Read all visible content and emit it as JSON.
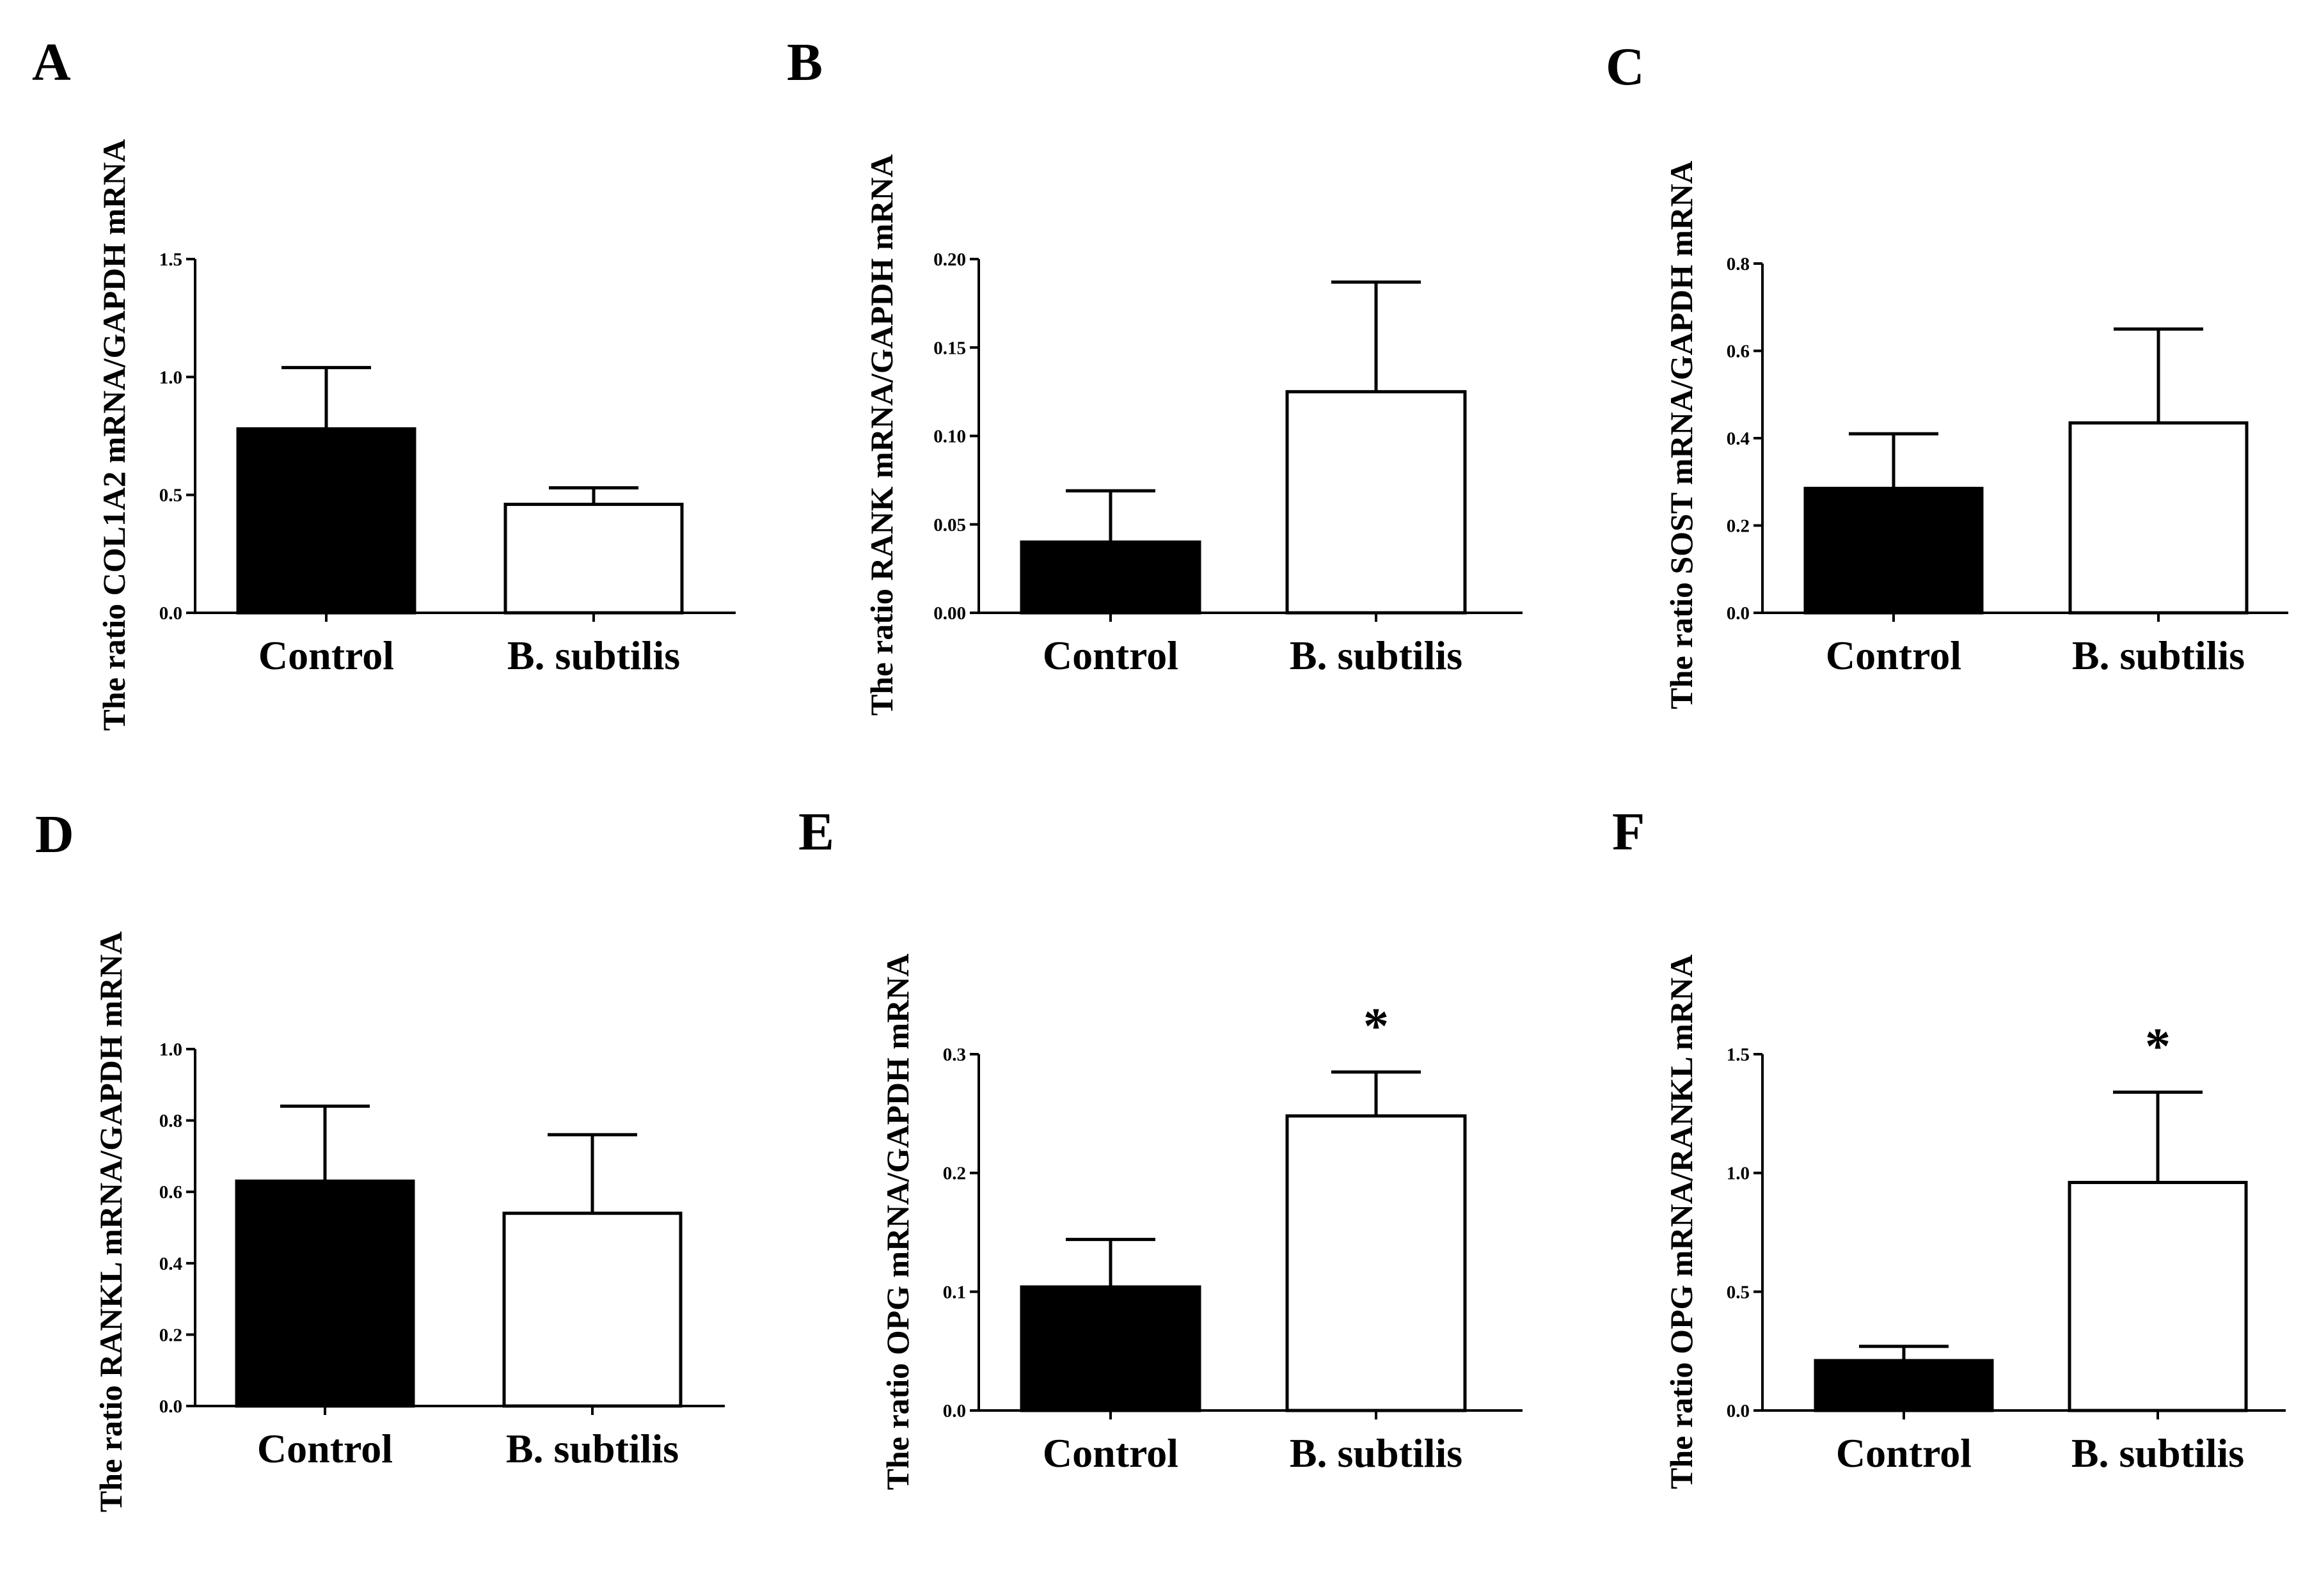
{
  "figure": {
    "categories": [
      "Control",
      "B. subtilis"
    ],
    "colors": {
      "control": "#000000",
      "treatment": "#ffffff",
      "stroke": "#000000"
    }
  },
  "chart_data": [
    {
      "type": "bar",
      "panel": "A",
      "ylabel": "The ratio COL1A2 mRNA/GAPDH mRNA",
      "categories": [
        "Control",
        "B. subtilis"
      ],
      "values": [
        0.78,
        0.46
      ],
      "errors": [
        0.26,
        0.07
      ],
      "ylim": [
        0,
        1.5
      ],
      "yticks": [
        0,
        0.5,
        1.0,
        1.5
      ],
      "ytick_labels": [
        "0.0",
        "0.5",
        "1.0",
        "1.5"
      ],
      "significance": [
        "",
        ""
      ]
    },
    {
      "type": "bar",
      "panel": "B",
      "ylabel": "The ratio RANK mRNA/GAPDH mRNA",
      "categories": [
        "Control",
        "B. subtilis"
      ],
      "values": [
        0.04,
        0.125
      ],
      "errors": [
        0.029,
        0.062
      ],
      "ylim": [
        0,
        0.2
      ],
      "yticks": [
        0,
        0.05,
        0.1,
        0.15,
        0.2
      ],
      "ytick_labels": [
        "0.00",
        "0.05",
        "0.10",
        "0.15",
        "0.20"
      ],
      "significance": [
        "",
        ""
      ]
    },
    {
      "type": "bar",
      "panel": "C",
      "ylabel": "The ratio SOST mRNA/GAPDH mRNA",
      "categories": [
        "Control",
        "B. subtilis"
      ],
      "values": [
        0.285,
        0.435
      ],
      "errors": [
        0.125,
        0.215
      ],
      "ylim": [
        0,
        0.8
      ],
      "yticks": [
        0,
        0.2,
        0.4,
        0.6,
        0.8
      ],
      "ytick_labels": [
        "0.0",
        "0.2",
        "0.4",
        "0.6",
        "0.8"
      ],
      "significance": [
        "",
        ""
      ]
    },
    {
      "type": "bar",
      "panel": "D",
      "ylabel": "The ratio RANKL mRNA/GAPDH mRNA",
      "categories": [
        "Control",
        "B. subtilis"
      ],
      "values": [
        0.63,
        0.54
      ],
      "errors": [
        0.21,
        0.22
      ],
      "ylim": [
        0,
        1.0
      ],
      "yticks": [
        0,
        0.2,
        0.4,
        0.6,
        0.8,
        1.0
      ],
      "ytick_labels": [
        "0.0",
        "0.2",
        "0.4",
        "0.6",
        "0.8",
        "1.0"
      ],
      "significance": [
        "",
        ""
      ]
    },
    {
      "type": "bar",
      "panel": "E",
      "ylabel": "The ratio OPG mRNA/GAPDH mRNA",
      "categories": [
        "Control",
        "B. subtilis"
      ],
      "values": [
        0.104,
        0.248
      ],
      "errors": [
        0.04,
        0.037
      ],
      "ylim": [
        0,
        0.3
      ],
      "yticks": [
        0,
        0.1,
        0.2,
        0.3
      ],
      "ytick_labels": [
        "0.0",
        "0.1",
        "0.2",
        "0.3"
      ],
      "significance": [
        "",
        "*"
      ]
    },
    {
      "type": "bar",
      "panel": "F",
      "ylabel": "The ratio OPG mRNA/RANKL mRNA",
      "categories": [
        "Control",
        "B. subtilis"
      ],
      "values": [
        0.21,
        0.96
      ],
      "errors": [
        0.06,
        0.38
      ],
      "ylim": [
        0,
        1.5
      ],
      "yticks": [
        0,
        0.5,
        1.0,
        1.5
      ],
      "ytick_labels": [
        "0.0",
        "0.5",
        "1.0",
        "1.5"
      ],
      "significance": [
        "",
        "*"
      ]
    }
  ]
}
